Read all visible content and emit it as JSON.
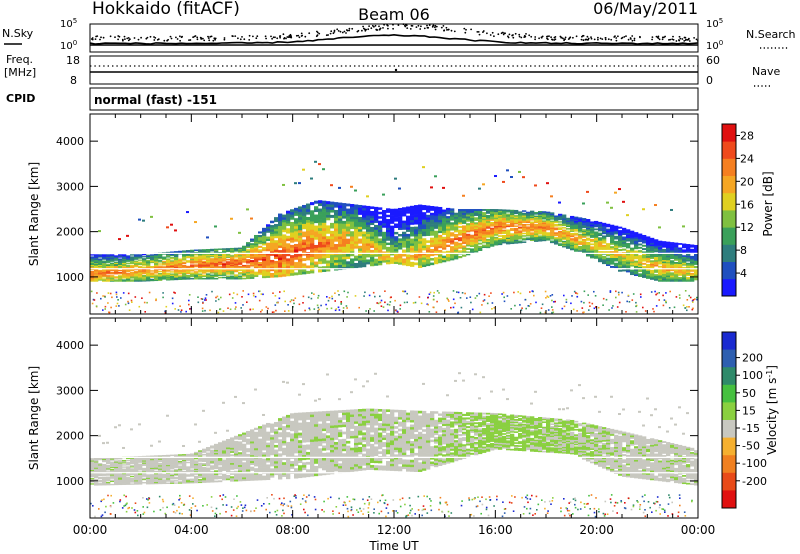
{
  "header": {
    "site": "Hokkaido (fitACF)",
    "beam": "Beam 06",
    "date": "06/May/2011"
  },
  "strips": {
    "nsky_label": "N.Sky",
    "nsearch_label": "N.Search",
    "noise_top_tick": "10^5",
    "noise_bottom_tick": "10^0",
    "freq_label": "Freq.",
    "freq_unit": "[MHz]",
    "freq_ticks": [
      "18",
      "8"
    ],
    "nave_label": "Nave",
    "nave_ticks": [
      "60",
      "0"
    ],
    "cpid_label": "CPID",
    "mode": "normal (fast) -151"
  },
  "colors": {
    "power_scale": [
      "#1a1aff",
      "#1f4fbf",
      "#2e7d7d",
      "#3aa05a",
      "#7fc040",
      "#e0d020",
      "#f5a623",
      "#f57f20",
      "#ef4a1c",
      "#e01010"
    ],
    "velocity_scale": [
      "#1a2ad0",
      "#2e5fb0",
      "#2f8a6a",
      "#46c040",
      "#8ad040",
      "#c8c8c0",
      "#f5b030",
      "#f08020",
      "#e84a18",
      "#e01010"
    ]
  },
  "chart_data": [
    {
      "type": "heatmap",
      "panel": "power",
      "xlabel": "",
      "ylabel": "Slant Range [km]",
      "y_ticks": [
        "1000",
        "2000",
        "3000",
        "4000"
      ],
      "ylim": [
        180,
        4600
      ],
      "xlim": [
        0,
        24
      ],
      "colorbar_label": "Power [dB]",
      "colorbar_ticks": [
        "4",
        "8",
        "12",
        "16",
        "20",
        "24",
        "28"
      ],
      "colorbar_range": [
        0,
        30
      ],
      "echo_bands": [
        {
          "t": 0,
          "lo": 900,
          "hi": 1500,
          "mid": 1050,
          "val": 24
        },
        {
          "t": 2,
          "lo": 900,
          "hi": 1500,
          "mid": 1150,
          "val": 22
        },
        {
          "t": 4,
          "lo": 950,
          "hi": 1600,
          "mid": 1250,
          "val": 24
        },
        {
          "t": 6,
          "lo": 950,
          "hi": 1650,
          "mid": 1300,
          "val": 25
        },
        {
          "t": 7.5,
          "lo": 1000,
          "hi": 2400,
          "mid": 1450,
          "val": 26
        },
        {
          "t": 9,
          "lo": 1100,
          "hi": 2700,
          "mid": 1700,
          "val": 24
        },
        {
          "t": 10.5,
          "lo": 1200,
          "hi": 2600,
          "mid": 1800,
          "val": 20
        },
        {
          "t": 12,
          "lo": 1300,
          "hi": 2500,
          "mid": 1400,
          "val": 18
        },
        {
          "t": 13,
          "lo": 1200,
          "hi": 2600,
          "mid": 1500,
          "val": 20
        },
        {
          "t": 14.5,
          "lo": 1400,
          "hi": 2500,
          "mid": 1850,
          "val": 23
        },
        {
          "t": 16,
          "lo": 1700,
          "hi": 2500,
          "mid": 2100,
          "val": 24
        },
        {
          "t": 18,
          "lo": 1800,
          "hi": 2450,
          "mid": 2100,
          "val": 23
        },
        {
          "t": 19.5,
          "lo": 1500,
          "hi": 2300,
          "mid": 1800,
          "val": 20
        },
        {
          "t": 21,
          "lo": 1100,
          "hi": 2100,
          "mid": 1500,
          "val": 18
        },
        {
          "t": 22.5,
          "lo": 900,
          "hi": 1800,
          "mid": 1200,
          "val": 20
        },
        {
          "t": 24,
          "lo": 900,
          "hi": 1700,
          "mid": 1100,
          "val": 18
        }
      ]
    },
    {
      "type": "heatmap",
      "panel": "velocity",
      "xlabel": "Time UT",
      "ylabel": "Slant Range [km]",
      "x_ticks": [
        "00:00",
        "04:00",
        "08:00",
        "12:00",
        "16:00",
        "20:00",
        "00:00"
      ],
      "y_ticks": [
        "1000",
        "2000",
        "3000",
        "4000"
      ],
      "ylim": [
        180,
        4600
      ],
      "xlim": [
        0,
        24
      ],
      "colorbar_label": "Velocity [m s^-1]",
      "colorbar_ticks": [
        "200",
        "100",
        "50",
        "15",
        "-15",
        "-50",
        "-100",
        "-200"
      ],
      "colorbar_range": [
        -250,
        250
      ],
      "echo_bands": [
        {
          "t": 0,
          "lo": 900,
          "hi": 1500,
          "val": 0
        },
        {
          "t": 4,
          "lo": 950,
          "hi": 1600,
          "val": 0
        },
        {
          "t": 8,
          "lo": 1050,
          "hi": 2500,
          "val": 0
        },
        {
          "t": 11,
          "lo": 1250,
          "hi": 2600,
          "val": 5
        },
        {
          "t": 13,
          "lo": 1200,
          "hi": 2550,
          "val": 0
        },
        {
          "t": 16,
          "lo": 1700,
          "hi": 2500,
          "val": 30
        },
        {
          "t": 19,
          "lo": 1600,
          "hi": 2350,
          "val": 20
        },
        {
          "t": 21,
          "lo": 1100,
          "hi": 2100,
          "val": 0
        },
        {
          "t": 24,
          "lo": 900,
          "hi": 1700,
          "val": 0
        }
      ]
    }
  ]
}
